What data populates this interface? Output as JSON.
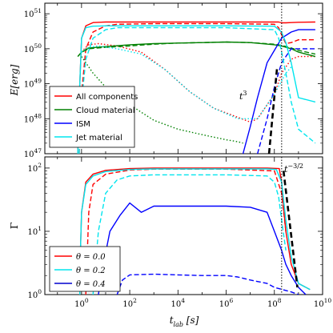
{
  "chart_data": [
    {
      "type": "line",
      "xscale": "log",
      "yscale": "log",
      "xlim": [
        0.03,
        10000000000
      ],
      "ylim": [
        1e+47,
        2e+51
      ],
      "ylabel": "E[erg]",
      "yticks": [
        {
          "value": 1e+47,
          "base": "10",
          "exp": "47"
        },
        {
          "value": 1e+48,
          "base": "10",
          "exp": "48"
        },
        {
          "value": 1e+49,
          "base": "10",
          "exp": "49"
        },
        {
          "value": 1e+50,
          "base": "10",
          "exp": "50"
        },
        {
          "value": 1e+51,
          "base": "10",
          "exp": "51"
        }
      ],
      "legend": {
        "position": "lower-left",
        "entries": [
          {
            "label": "All components",
            "color": "#ff0000"
          },
          {
            "label": "Cloud material",
            "color": "#008000"
          },
          {
            "label": "ISM",
            "color": "#0000ff"
          },
          {
            "label": "Jet material",
            "color": "#00e5ee"
          }
        ]
      },
      "series": [
        {
          "component": "all",
          "theta": "0.0",
          "style": "solid",
          "color": "#ff0000",
          "x": [
            0.7,
            0.85,
            1,
            1.5,
            3,
            10,
            1000.0,
            1000000.0,
            100000000.0,
            150000000.0,
            200000000.0,
            300000000.0,
            500000000.0,
            1000000000.0,
            5000000000.0
          ],
          "y": [
            1e+47,
            1e+49,
            2e+50,
            4.5e+50,
            5.6e+50,
            5.8e+50,
            5.8e+50,
            5.8e+50,
            5.8e+50,
            5.8e+50,
            5.5e+50,
            5.5e+50,
            5.6e+50,
            5.7e+50,
            5.8e+50
          ]
        },
        {
          "component": "all",
          "theta": "0.2",
          "style": "dashed",
          "color": "#ff0000",
          "x": [
            0.8,
            1,
            1.5,
            3,
            10,
            30,
            1000.0,
            1000000.0,
            100000000.0,
            150000000.0,
            200000000.0,
            300000000.0,
            500000000.0,
            1000000000.0,
            5000000000.0
          ],
          "y": [
            1e+47,
            5e+48,
            1e+50,
            3e+50,
            4.5e+50,
            5e+50,
            5.2e+50,
            5.2e+50,
            5e+50,
            4e+50,
            2.5e+50,
            1.4e+50,
            1.5e+50,
            1.8e+50,
            1.8e+50
          ]
        },
        {
          "component": "all",
          "theta": "0.4",
          "style": "dotted",
          "color": "#ff0000",
          "x": [
            1,
            1.5,
            2,
            5,
            30,
            300,
            3000.0,
            30000.0,
            300000.0,
            3000000.0,
            10000000.0,
            20000000.0,
            100000000.0,
            200000000.0,
            500000000.0,
            1000000000.0,
            5000000000.0
          ],
          "y": [
            8e+49,
            1.1e+50,
            1.3e+50,
            1.4e+50,
            1.2e+50,
            8e+49,
            2.5e+49,
            6e+48,
            2e+48,
            1.1e+48,
            8e+47,
            1e+48,
            5e+48,
            2e+49,
            5e+49,
            6e+49,
            6e+49
          ]
        },
        {
          "component": "cloud",
          "theta": "0.0",
          "style": "solid",
          "color": "#008000",
          "x": [
            0.7,
            1,
            2,
            10,
            100,
            1000.0,
            10000.0,
            100000.0,
            1000000.0,
            10000000.0,
            100000000.0,
            200000000.0,
            500000000.0,
            1000000000.0,
            5000000000.0
          ],
          "y": [
            6e+49,
            8e+49,
            1.05e+50,
            1.15e+50,
            1.3e+50,
            1.4e+50,
            1.45e+50,
            1.5e+50,
            1.55e+50,
            1.5e+50,
            1.3e+50,
            1.2e+50,
            1e+50,
            8e+49,
            6e+49
          ]
        },
        {
          "component": "cloud",
          "theta": "0.2",
          "style": "dashed",
          "color": "#008000",
          "x": [
            0.7,
            1,
            2,
            10,
            100,
            1000.0,
            10000.0,
            100000.0,
            1000000.0,
            10000000.0,
            100000000.0,
            200000000.0,
            500000000.0,
            1000000000.0,
            5000000000.0
          ],
          "y": [
            6e+49,
            8e+49,
            1e+50,
            1.1e+50,
            1.2e+50,
            1.35e+50,
            1.45e+50,
            1.5e+50,
            1.55e+50,
            1.5e+50,
            1.35e+50,
            1.25e+50,
            1.05e+50,
            9e+49,
            7e+49
          ]
        },
        {
          "component": "cloud",
          "theta": "0.4",
          "style": "dotted",
          "color": "#008000",
          "x": [
            1,
            3,
            10,
            100,
            1000.0,
            10000.0,
            100000.0,
            1000000.0,
            3000000.0,
            5000000.0
          ],
          "y": [
            6e+49,
            2e+49,
            8e+48,
            2.5e+48,
            9e+47,
            5e+47,
            3.5e+47,
            2.5e+47,
            2.2e+47,
            2e+47
          ]
        },
        {
          "component": "ism",
          "theta": "0.0",
          "style": "solid",
          "color": "#0000ff",
          "x": [
            5000000.0,
            10000000.0,
            20000000.0,
            50000000.0,
            100000000.0,
            200000000.0,
            500000000.0,
            1000000000.0,
            5000000000.0
          ],
          "y": [
            1e+47,
            6e+47,
            4e+48,
            4e+49,
            9e+49,
            2e+50,
            3e+50,
            3.5e+50,
            3.5e+50
          ]
        },
        {
          "component": "ism",
          "theta": "0.2",
          "style": "dashed",
          "color": "#0000ff",
          "x": [
            20000000.0,
            50000000.0,
            100000000.0,
            200000000.0,
            500000000.0,
            1000000000.0,
            5000000000.0
          ],
          "y": [
            1e+47,
            1e+48,
            8e+48,
            4e+49,
            1e+50,
            1e+50,
            1e+50
          ]
        },
        {
          "component": "jet",
          "theta": "0.0",
          "style": "solid",
          "color": "#00e5ee",
          "x": [
            0.7,
            0.85,
            1,
            1.5,
            3,
            10,
            1000.0,
            1000000.0,
            100000000.0,
            200000000.0,
            300000000.0,
            500000000.0,
            1000000000.0,
            5000000000.0
          ],
          "y": [
            1e+47,
            1e+49,
            2e+50,
            4e+50,
            4.4e+50,
            4.5e+50,
            4.5e+50,
            4.5e+50,
            4.4e+50,
            3e+50,
            1.5e+50,
            4e+49,
            4e+48,
            3e+48
          ]
        },
        {
          "component": "jet",
          "theta": "0.2",
          "style": "dashed",
          "color": "#00e5ee",
          "x": [
            0.8,
            1,
            1.5,
            3,
            10,
            30,
            1000.0,
            1000000.0,
            100000000.0,
            150000000.0,
            200000000.0,
            300000000.0,
            500000000.0,
            1000000000.0,
            5000000000.0
          ],
          "y": [
            1e+47,
            3e+48,
            5e+49,
            2e+50,
            3.5e+50,
            4e+50,
            4e+50,
            4e+50,
            3.5e+50,
            2e+50,
            8e+49,
            2e+49,
            3e+48,
            5e+47,
            2e+47
          ]
        },
        {
          "component": "jet",
          "theta": "0.4",
          "style": "dotted",
          "color": "#00e5ee",
          "x": [
            1,
            1.5,
            2,
            5,
            30,
            300,
            3000.0,
            30000.0,
            300000.0,
            3000000.0,
            20000000.0,
            100000000.0,
            300000000.0,
            500000000.0
          ],
          "y": [
            8e+49,
            1e+50,
            1.1e+50,
            1.2e+50,
            1e+50,
            7e+49,
            2.5e+49,
            6e+48,
            2e+48,
            1e+48,
            1e+48,
            5e+48,
            2e+49,
            3e+49
          ]
        },
        {
          "component": "power-law",
          "style": "thick-dashed",
          "color": "#000000",
          "x": [
            60000000.0,
            130000000.0
          ],
          "y": [
            1e+47,
            3e+49
          ]
        }
      ],
      "annotations": [
        {
          "text": "t",
          "sup": "3",
          "x": 30000000.0,
          "y": 2e+48
        },
        {
          "vline_x": 200000000.0
        }
      ]
    },
    {
      "type": "line",
      "xscale": "log",
      "yscale": "log",
      "xlim": [
        0.03,
        10000000000
      ],
      "ylim": [
        1,
        150
      ],
      "ylabel": "Γ",
      "xlabel": "t_lab [s]",
      "xlabel_main": "t",
      "xlabel_sub": "lab",
      "xlabel_unit": " [s]",
      "xticks": [
        {
          "value": 1,
          "base": "10",
          "exp": "0"
        },
        {
          "value": 100,
          "base": "10",
          "exp": "2"
        },
        {
          "value": 10000,
          "base": "10",
          "exp": "4"
        },
        {
          "value": 1000000,
          "base": "10",
          "exp": "6"
        },
        {
          "value": 100000000,
          "base": "10",
          "exp": "8"
        },
        {
          "value": 10000000000,
          "base": "10",
          "exp": "10"
        }
      ],
      "yticks": [
        {
          "value": 1,
          "base": "10",
          "exp": "0"
        },
        {
          "value": 10,
          "base": "10",
          "exp": "1"
        },
        {
          "value": 100,
          "base": "10",
          "exp": "2"
        }
      ],
      "legend": {
        "position": "lower-left",
        "entries": [
          {
            "label": "θ = 0.0",
            "color": "#ff0000"
          },
          {
            "label": "θ = 0.2",
            "color": "#00e5ee"
          },
          {
            "label": "θ = 0.4",
            "color": "#0000cd"
          }
        ]
      },
      "series": [
        {
          "component": "all",
          "theta": "0.0",
          "style": "solid",
          "color": "#ff0000",
          "x": [
            0.85,
            0.9,
            1,
            1.5,
            3,
            10,
            100,
            1000.0,
            1000000.0,
            50000000.0,
            160000000.0,
            200000000.0,
            250000000.0,
            300000000.0,
            500000000.0,
            1000000000.0,
            3000000000.0
          ],
          "y": [
            1,
            5,
            20,
            60,
            80,
            92,
            98,
            100,
            100,
            100,
            98,
            60,
            20,
            10,
            3,
            1.5,
            1.2
          ]
        },
        {
          "component": "all",
          "theta": "0.2",
          "style": "dashed",
          "color": "#ff0000",
          "x": [
            1.5,
            2,
            3,
            10,
            100,
            1000.0,
            1000000.0,
            100000000.0,
            200000000.0,
            300000000.0
          ],
          "y": [
            1,
            20,
            55,
            80,
            93,
            96,
            96,
            90,
            40,
            10
          ]
        },
        {
          "component": "jet",
          "theta": "0.0",
          "style": "solid",
          "color": "#00e5ee",
          "x": [
            0.85,
            0.9,
            1,
            1.5,
            3,
            10,
            100,
            1000.0,
            1000000.0,
            50000000.0,
            120000000.0,
            200000000.0,
            300000000.0,
            500000000.0,
            1000000000.0,
            3000000000.0
          ],
          "y": [
            1,
            5,
            20,
            55,
            75,
            88,
            95,
            97,
            97,
            97,
            95,
            60,
            15,
            4,
            1.5,
            1.2
          ]
        },
        {
          "component": "jet",
          "theta": "0.2",
          "style": "dashed",
          "color": "#00e5ee",
          "x": [
            3,
            5,
            10,
            30,
            100,
            1000.0,
            1000000.0,
            50000000.0,
            100000000.0,
            150000000.0,
            200000000.0,
            300000000.0
          ],
          "y": [
            1,
            10,
            40,
            65,
            75,
            78,
            78,
            75,
            60,
            35,
            15,
            5
          ]
        },
        {
          "component": "ism",
          "theta": "0.0",
          "style": "solid",
          "color": "#0000ff",
          "x": [
            5,
            8,
            15,
            40,
            100,
            300,
            1000.0,
            10000.0,
            100000.0,
            1000000.0,
            10000000.0,
            50000000.0,
            100000000.0,
            200000000.0,
            300000000.0,
            500000000.0,
            1000000000.0,
            2000000000.0
          ],
          "y": [
            1,
            3,
            10,
            18,
            28,
            20,
            25,
            25,
            25,
            25,
            24,
            20,
            10,
            5,
            3,
            2,
            1.3,
            1
          ]
        },
        {
          "component": "ism",
          "theta": "0.2",
          "style": "dashed",
          "color": "#0000ff",
          "x": [
            30,
            50,
            100,
            1000.0,
            10000.0,
            100000.0,
            1000000.0,
            3000000.0,
            10000000.0,
            50000000.0,
            100000000.0,
            500000000.0,
            1000000000.0
          ],
          "y": [
            1,
            1.7,
            2.05,
            2.1,
            2.05,
            2,
            2,
            1.9,
            1.7,
            1.5,
            1.3,
            1.1,
            1
          ]
        },
        {
          "component": "power-law",
          "style": "thick-dashed",
          "color": "#000000",
          "x": [
            240000000.0,
            900000000.0
          ],
          "y": [
            90,
            1.3
          ]
        }
      ],
      "annotations": [
        {
          "text": "t",
          "sup": "−3/2",
          "x": 320000000.0,
          "y": 100
        },
        {
          "vline_x": 200000000.0
        }
      ]
    }
  ]
}
